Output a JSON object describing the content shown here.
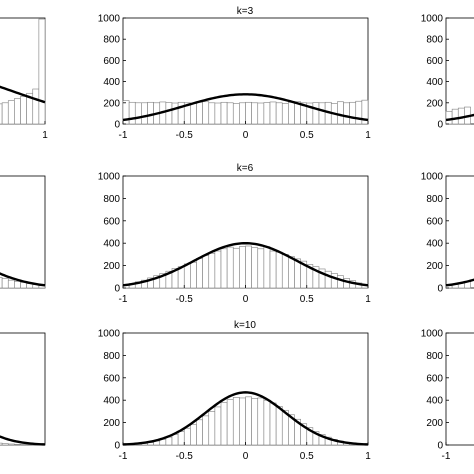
{
  "colors": {
    "background": "#ffffff",
    "bar_fill": "#ffffff",
    "bar_stroke": "#7f7f7f",
    "curve": "#000000",
    "axis": "#000000"
  },
  "chart_data": [
    {
      "type": "bar",
      "title": "",
      "position": "row-1-left",
      "xlim": [
        -1,
        1
      ],
      "ylim": [
        0,
        1000
      ],
      "xticks": [],
      "xtick_labels": [],
      "yticks": [],
      "ytick_labels": [],
      "bar_edges": [
        0.0,
        0.05,
        0.1,
        0.15,
        0.2,
        0.25,
        0.3,
        0.35,
        0.4,
        0.45,
        0.5,
        0.55,
        0.6,
        0.65,
        0.7,
        0.75,
        0.8,
        0.85,
        0.9,
        0.95,
        1.0
      ],
      "bar_values": [
        180,
        175,
        175,
        170,
        168,
        172,
        165,
        170,
        168,
        175,
        170,
        180,
        190,
        200,
        220,
        240,
        260,
        290,
        330,
        990
      ],
      "curve": {
        "type": "gaussian",
        "mean": 0,
        "sd": 0.75,
        "scale": 500
      },
      "visible_text": {
        "xt1": "1"
      }
    },
    {
      "type": "bar",
      "title": "k=3",
      "position": "row-1-center",
      "xlim": [
        -1,
        1
      ],
      "ylim": [
        0,
        1000
      ],
      "xticks": [
        -1,
        -0.5,
        0,
        0.5,
        1
      ],
      "xtick_labels": [
        "-1",
        "-0.5",
        "0",
        "0.5",
        "1"
      ],
      "yticks": [
        0,
        200,
        400,
        600,
        800,
        1000
      ],
      "ytick_labels": [
        "0",
        "200",
        "400",
        "600",
        "800",
        "1000"
      ],
      "bar_edges": [
        -1.0,
        -0.95,
        -0.9,
        -0.85,
        -0.8,
        -0.75,
        -0.7,
        -0.65,
        -0.6,
        -0.55,
        -0.5,
        -0.45,
        -0.4,
        -0.35,
        -0.3,
        -0.25,
        -0.2,
        -0.15,
        -0.1,
        -0.05,
        0.0,
        0.05,
        0.1,
        0.15,
        0.2,
        0.25,
        0.3,
        0.35,
        0.4,
        0.45,
        0.5,
        0.55,
        0.6,
        0.65,
        0.7,
        0.75,
        0.8,
        0.85,
        0.9,
        0.95,
        1.0
      ],
      "bar_values": [
        220,
        205,
        200,
        200,
        205,
        200,
        208,
        202,
        198,
        205,
        200,
        195,
        205,
        210,
        200,
        198,
        205,
        200,
        195,
        200,
        205,
        200,
        198,
        202,
        208,
        200,
        195,
        205,
        210,
        200,
        198,
        202,
        200,
        205,
        195,
        210,
        200,
        205,
        215,
        225
      ],
      "curve": {
        "type": "gaussian",
        "mean": 0,
        "sd": 0.5,
        "scale": 280
      },
      "visible_text": {
        "xt1": "-1"
      }
    },
    {
      "type": "bar",
      "title": "",
      "position": "row-1-right",
      "xlim": [
        -1,
        1
      ],
      "ylim": [
        0,
        1000
      ],
      "xticks": [],
      "xtick_labels": [],
      "yticks": [
        0,
        200,
        400,
        600,
        800,
        1000
      ],
      "ytick_labels": [
        "0",
        "200",
        "400",
        "600",
        "800",
        "1000"
      ],
      "bar_edges": [
        -1.0,
        -0.95,
        -0.9,
        -0.85,
        -0.8
      ],
      "bar_values": [
        120,
        140,
        150,
        160
      ],
      "curve": {
        "type": "gaussian",
        "mean": 0,
        "sd": 0.5,
        "scale": 280
      },
      "visible_text": {}
    },
    {
      "type": "bar",
      "title": "",
      "position": "row-2-left",
      "xlim": [
        -1,
        1
      ],
      "ylim": [
        0,
        1000
      ],
      "xticks": [],
      "xtick_labels": [],
      "yticks": [],
      "ytick_labels": [],
      "bar_edges": [
        0.0,
        0.05,
        0.1,
        0.15,
        0.2,
        0.25,
        0.3,
        0.35,
        0.4,
        0.45,
        0.5,
        0.55,
        0.6,
        0.65,
        0.7,
        0.75,
        0.8,
        0.85,
        0.9,
        0.95,
        1.0
      ],
      "bar_values": [
        230,
        215,
        225,
        200,
        195,
        185,
        170,
        160,
        140,
        130,
        120,
        110,
        95,
        85,
        70,
        60,
        50,
        40,
        30,
        20
      ],
      "curve": {
        "type": "gaussian",
        "mean": 0,
        "sd": 0.42,
        "scale": 400
      },
      "visible_text": {}
    },
    {
      "type": "bar",
      "title": "k=6",
      "position": "row-2-center",
      "xlim": [
        -1,
        1
      ],
      "ylim": [
        0,
        1000
      ],
      "xticks": [
        -1,
        -0.5,
        0,
        0.5,
        1
      ],
      "xtick_labels": [
        "-1",
        "-0.5",
        "0",
        "0.5",
        "1"
      ],
      "yticks": [
        0,
        200,
        400,
        600,
        800,
        1000
      ],
      "ytick_labels": [
        "0",
        "200",
        "400",
        "600",
        "800",
        "1000"
      ],
      "bar_edges": [
        -1.0,
        -0.95,
        -0.9,
        -0.85,
        -0.8,
        -0.75,
        -0.7,
        -0.65,
        -0.6,
        -0.55,
        -0.5,
        -0.45,
        -0.4,
        -0.35,
        -0.3,
        -0.25,
        -0.2,
        -0.15,
        -0.1,
        -0.05,
        0.0,
        0.05,
        0.1,
        0.15,
        0.2,
        0.25,
        0.3,
        0.35,
        0.4,
        0.45,
        0.5,
        0.55,
        0.6,
        0.65,
        0.7,
        0.75,
        0.8,
        0.85,
        0.9,
        0.95,
        1.0
      ],
      "bar_values": [
        30,
        40,
        55,
        70,
        90,
        110,
        130,
        150,
        175,
        190,
        215,
        230,
        265,
        290,
        310,
        330,
        350,
        365,
        355,
        370,
        375,
        360,
        350,
        370,
        330,
        320,
        300,
        280,
        260,
        240,
        210,
        190,
        170,
        150,
        130,
        110,
        85,
        65,
        45,
        30
      ],
      "curve": {
        "type": "gaussian",
        "mean": 0,
        "sd": 0.42,
        "scale": 400
      },
      "visible_text": {
        "yt6": "1000",
        "xt5": "1"
      }
    },
    {
      "type": "bar",
      "title": "",
      "position": "row-2-right",
      "xlim": [
        -1,
        1
      ],
      "ylim": [
        0,
        1000
      ],
      "xticks": [],
      "xtick_labels": [],
      "yticks": [
        0,
        200,
        400,
        600,
        800,
        1000
      ],
      "ytick_labels": [
        "0",
        "200",
        "400",
        "600",
        "800",
        "1000"
      ],
      "bar_edges": [
        -1.0,
        -0.95,
        -0.9,
        -0.85,
        -0.8
      ],
      "bar_values": [
        20,
        30,
        45,
        60
      ],
      "curve": {
        "type": "gaussian",
        "mean": 0,
        "sd": 0.42,
        "scale": 400
      },
      "visible_text": {}
    },
    {
      "type": "bar",
      "title": "",
      "position": "row-3-left",
      "xlim": [
        -1,
        1
      ],
      "ylim": [
        0,
        1000
      ],
      "xticks": [],
      "xtick_labels": [],
      "yticks": [],
      "ytick_labels": [],
      "bar_edges": [
        0.0,
        0.05,
        0.1,
        0.15,
        0.2,
        0.25,
        0.3,
        0.35,
        0.4,
        0.45,
        0.5,
        0.55,
        0.6,
        0.65,
        0.7,
        0.75,
        0.8,
        0.85,
        0.9,
        0.95,
        1.0
      ],
      "bar_values": [
        130,
        120,
        105,
        95,
        85,
        70,
        60,
        50,
        42,
        35,
        28,
        22,
        17,
        12,
        9,
        6,
        4,
        3,
        2,
        1
      ],
      "curve": {
        "type": "gaussian",
        "mean": 0,
        "sd": 0.33,
        "scale": 470
      },
      "visible_text": {}
    },
    {
      "type": "bar",
      "title": "k=10",
      "position": "row-3-center",
      "xlim": [
        -1,
        1
      ],
      "ylim": [
        0,
        1000
      ],
      "xticks": [
        -1,
        -0.5,
        0,
        0.5,
        1
      ],
      "xtick_labels": [
        "-1",
        "-0.5",
        "0",
        "0.5",
        "1"
      ],
      "yticks": [
        0,
        200,
        400,
        600,
        800,
        1000
      ],
      "ytick_labels": [
        "0",
        "200",
        "400",
        "600",
        "800",
        "1000"
      ],
      "bar_edges": [
        -1.0,
        -0.95,
        -0.9,
        -0.85,
        -0.8,
        -0.75,
        -0.7,
        -0.65,
        -0.6,
        -0.55,
        -0.5,
        -0.45,
        -0.4,
        -0.35,
        -0.3,
        -0.25,
        -0.2,
        -0.15,
        -0.1,
        -0.05,
        0.0,
        0.05,
        0.1,
        0.15,
        0.2,
        0.25,
        0.3,
        0.35,
        0.4,
        0.45,
        0.5,
        0.55,
        0.6,
        0.65,
        0.7,
        0.75,
        0.8,
        0.85,
        0.9,
        0.95,
        1.0
      ],
      "bar_values": [
        2,
        5,
        8,
        14,
        22,
        35,
        50,
        70,
        95,
        120,
        150,
        185,
        225,
        260,
        300,
        340,
        380,
        405,
        425,
        420,
        430,
        415,
        420,
        400,
        375,
        345,
        310,
        270,
        230,
        190,
        155,
        120,
        95,
        70,
        50,
        35,
        22,
        14,
        8,
        4
      ],
      "curve": {
        "type": "gaussian",
        "mean": 0,
        "sd": 0.33,
        "scale": 470
      },
      "visible_text": {
        "yt6": "1000",
        "xt5": "1"
      }
    },
    {
      "type": "bar",
      "title": "",
      "position": "row-3-right",
      "xlim": [
        -1,
        1
      ],
      "ylim": [
        0,
        1000
      ],
      "xticks": [
        -1
      ],
      "xtick_labels": [
        "-1"
      ],
      "yticks": [
        0,
        200,
        400,
        600,
        800,
        1000
      ],
      "ytick_labels": [
        "0",
        "200",
        "400",
        "600",
        "800",
        "1000"
      ],
      "bar_edges": [],
      "bar_values": [],
      "curve": {
        "type": "gaussian",
        "mean": 0,
        "sd": 0.33,
        "scale": 470
      },
      "visible_text": {
        "xt1": "-1"
      }
    }
  ]
}
